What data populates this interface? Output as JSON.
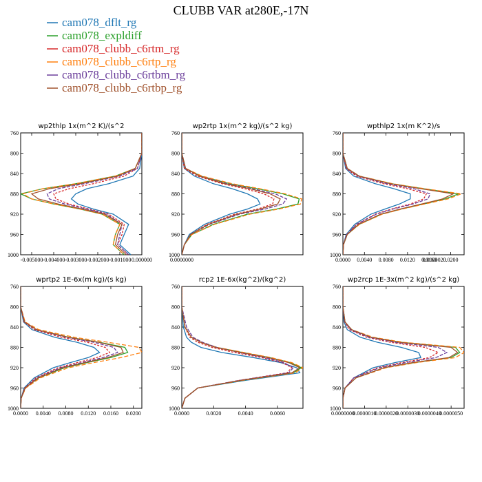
{
  "title": "CLUBB VAR at280E,-17N",
  "legend": [
    {
      "label": "cam078_dflt_rg",
      "color": "#1f77b4"
    },
    {
      "label": "cam078_expldiff",
      "color": "#2ca02c"
    },
    {
      "label": "cam078_clubb_c6rtm_rg",
      "color": "#d62728"
    },
    {
      "label": "cam078_clubb_c6rtp_rg",
      "color": "#ff7f0e"
    },
    {
      "label": "cam078_clubb_c6rtbm_rg",
      "color": "#6a3d9a"
    },
    {
      "label": "cam078_clubb_c6rtbp_rg",
      "color": "#a0522d"
    }
  ],
  "chart_data": [
    {
      "type": "line",
      "title": "wp2thlp 1x(m^2 K)/(s^2",
      "xlim": [
        -0.0055,
        0.0
      ],
      "xticks": [
        "-0.005000",
        "-0.004000",
        "-0.003000",
        "-0.002000",
        "-0.001000",
        "0.000000"
      ],
      "ylim": [
        760,
        1000
      ],
      "yticks": [
        "760",
        "800",
        "840",
        "880",
        "920",
        "960",
        "1000"
      ],
      "y": [
        760,
        800,
        830,
        845,
        860,
        870,
        880,
        890,
        900,
        910,
        920,
        940,
        960,
        980,
        1000
      ],
      "series": [
        {
          "name": "cam078_dflt_rg",
          "values": [
            0,
            0,
            -0.0001,
            -0.0004,
            -0.0015,
            -0.0025,
            -0.003,
            -0.0032,
            -0.0029,
            -0.0022,
            -0.0013,
            -0.0006,
            -0.0008,
            -0.001,
            -0.0005
          ]
        },
        {
          "name": "cam078_expldiff",
          "values": [
            0,
            0,
            -0.0003,
            -0.0012,
            -0.003,
            -0.0045,
            -0.0055,
            -0.005,
            -0.004,
            -0.0028,
            -0.0018,
            -0.001,
            -0.0012,
            -0.0013,
            -0.0008
          ]
        },
        {
          "name": "cam078_clubb_c6rtm_rg",
          "values": [
            0,
            0,
            -0.0002,
            -0.0008,
            -0.0022,
            -0.0033,
            -0.004,
            -0.0039,
            -0.0033,
            -0.0024,
            -0.0015,
            -0.0008,
            -0.0009,
            -0.0011,
            -0.0006
          ]
        },
        {
          "name": "cam078_clubb_c6rtp_rg",
          "values": [
            0,
            0,
            -0.0003,
            -0.0012,
            -0.003,
            -0.0045,
            -0.0054,
            -0.005,
            -0.004,
            -0.0028,
            -0.0018,
            -0.001,
            -0.0012,
            -0.0013,
            -0.0008
          ]
        },
        {
          "name": "cam078_clubb_c6rtbm_rg",
          "values": [
            0,
            0,
            -0.0002,
            -0.001,
            -0.0026,
            -0.0038,
            -0.0043,
            -0.0042,
            -0.0035,
            -0.0025,
            -0.0016,
            -0.0009,
            -0.001,
            -0.0011,
            -0.0006
          ]
        },
        {
          "name": "cam078_clubb_c6rtbp_rg",
          "values": [
            0,
            0,
            -0.0003,
            -0.0011,
            -0.0028,
            -0.0042,
            -0.005,
            -0.0047,
            -0.0038,
            -0.0027,
            -0.0017,
            -0.0009,
            -0.0011,
            -0.0012,
            -0.0007
          ]
        }
      ]
    },
    {
      "type": "line",
      "title": "wp2rtp 1x(m^2 kg)/(s^2 kg)",
      "xlim": [
        0.0,
        9.6e-07
      ],
      "xticks": [
        "0.0000000",
        "0.0000020",
        "0.0000040",
        "0.0000060",
        "0.0000080"
      ],
      "ylim": [
        760,
        1000
      ],
      "yticks": [
        "760",
        "800",
        "840",
        "880",
        "920",
        "960",
        "1000"
      ],
      "y": [
        760,
        800,
        830,
        845,
        860,
        870,
        880,
        890,
        900,
        910,
        920,
        940,
        960,
        980,
        1000
      ],
      "series": [
        {
          "name": "cam078_dflt_rg",
          "values": [
            0,
            0,
            2e-08,
            1e-07,
            2.5e-07,
            4e-07,
            5.2e-07,
            6e-07,
            6.2e-07,
            5.2e-07,
            3.8e-07,
            1.8e-07,
            6e-08,
            2e-08,
            0
          ]
        },
        {
          "name": "cam078_expldiff",
          "values": [
            0,
            0,
            3e-08,
            1.5e-07,
            3.8e-07,
            6e-07,
            8e-07,
            9.3e-07,
            9.2e-07,
            7.5e-07,
            5.2e-07,
            2.5e-07,
            8e-08,
            2e-08,
            0
          ]
        },
        {
          "name": "cam078_clubb_c6rtm_rg",
          "values": [
            0,
            0,
            2e-08,
            1.2e-07,
            3.2e-07,
            5e-07,
            6.5e-07,
            7.3e-07,
            7.2e-07,
            6e-07,
            4.2e-07,
            2e-07,
            7e-08,
            2e-08,
            0
          ]
        },
        {
          "name": "cam078_clubb_c6rtp_rg",
          "values": [
            0,
            0,
            3e-08,
            1.6e-07,
            4e-07,
            6.2e-07,
            8.2e-07,
            9.5e-07,
            9.4e-07,
            7.7e-07,
            5.4e-07,
            2.6e-07,
            8e-08,
            2e-08,
            0
          ]
        },
        {
          "name": "cam078_clubb_c6rtbm_rg",
          "values": [
            0,
            0,
            3e-08,
            1.4e-07,
            3.6e-07,
            5.6e-07,
            7.4e-07,
            8.3e-07,
            8e-07,
            6.6e-07,
            4.6e-07,
            2.2e-07,
            7e-08,
            2e-08,
            0
          ]
        },
        {
          "name": "cam078_clubb_c6rtbp_rg",
          "values": [
            0,
            0,
            3e-08,
            1.4e-07,
            3.4e-07,
            5.4e-07,
            7e-07,
            7.8e-07,
            7.6e-07,
            6.2e-07,
            4.4e-07,
            2.1e-07,
            7e-08,
            2e-08,
            0
          ]
        }
      ]
    },
    {
      "type": "line",
      "title": "wpthlp2 1x(m K^2)/s",
      "xlim": [
        0.0,
        0.0225
      ],
      "xticks": [
        "0.0000",
        "0.0040",
        "0.0080",
        "0.0120",
        "0.0160",
        "0.0200"
      ],
      "ylim": [
        760,
        1000
      ],
      "yticks": [
        "760",
        "800",
        "840",
        "880",
        "920",
        "960",
        "1000"
      ],
      "y": [
        760,
        800,
        830,
        845,
        860,
        870,
        880,
        890,
        900,
        910,
        920,
        940,
        960,
        980,
        1000
      ],
      "series": [
        {
          "name": "cam078_dflt_rg",
          "values": [
            0,
            0,
            0.0005,
            0.002,
            0.006,
            0.0095,
            0.0125,
            0.0125,
            0.0105,
            0.0078,
            0.0052,
            0.0022,
            0.0006,
            0.0001,
            0
          ]
        },
        {
          "name": "cam078_expldiff",
          "values": [
            0,
            0,
            0.0008,
            0.003,
            0.009,
            0.015,
            0.0215,
            0.019,
            0.015,
            0.0108,
            0.0072,
            0.003,
            0.0008,
            0.0001,
            0
          ]
        },
        {
          "name": "cam078_clubb_c6rtm_rg",
          "values": [
            0,
            0,
            0.0006,
            0.0025,
            0.0075,
            0.012,
            0.0155,
            0.015,
            0.0125,
            0.009,
            0.006,
            0.0025,
            0.0007,
            0.0001,
            0
          ]
        },
        {
          "name": "cam078_clubb_c6rtp_rg",
          "values": [
            0,
            0,
            0.0008,
            0.0031,
            0.0092,
            0.0152,
            0.022,
            0.0195,
            0.0152,
            0.011,
            0.0073,
            0.0031,
            0.0008,
            0.0001,
            0
          ]
        },
        {
          "name": "cam078_clubb_c6rtbm_rg",
          "values": [
            0,
            0,
            0.0007,
            0.0028,
            0.0082,
            0.0132,
            0.0162,
            0.0158,
            0.013,
            0.0093,
            0.0062,
            0.0026,
            0.0007,
            0.0001,
            0
          ]
        },
        {
          "name": "cam078_clubb_c6rtbp_rg",
          "values": [
            0,
            0,
            0.0008,
            0.003,
            0.0088,
            0.0145,
            0.0205,
            0.0185,
            0.0146,
            0.0106,
            0.007,
            0.0029,
            0.0008,
            0.0001,
            0
          ]
        }
      ]
    },
    {
      "type": "line",
      "title": "wprtp2 1E-6x(m kg)/(s kg)",
      "xlim": [
        0.0,
        0.0215
      ],
      "xticks": [
        "0.0000",
        "0.0040",
        "0.0080",
        "0.0120",
        "0.0160",
        "0.0200"
      ],
      "ylim": [
        760,
        1000
      ],
      "yticks": [
        "760",
        "800",
        "840",
        "880",
        "920",
        "960",
        "1000"
      ],
      "y": [
        760,
        800,
        830,
        845,
        860,
        870,
        880,
        890,
        900,
        910,
        920,
        940,
        960,
        980,
        1000
      ],
      "series": [
        {
          "name": "cam078_dflt_rg",
          "values": [
            0,
            0,
            0.0005,
            0.002,
            0.006,
            0.01,
            0.013,
            0.014,
            0.012,
            0.0088,
            0.0058,
            0.0024,
            0.0006,
            0.0001,
            0
          ]
        },
        {
          "name": "cam078_expldiff",
          "values": [
            0,
            0,
            0.0007,
            0.0028,
            0.0085,
            0.014,
            0.0185,
            0.019,
            0.016,
            0.0118,
            0.0078,
            0.0032,
            0.0008,
            0.0001,
            0
          ]
        },
        {
          "name": "cam078_clubb_c6rtm_rg",
          "values": [
            0,
            0,
            0.0006,
            0.0024,
            0.0072,
            0.0118,
            0.015,
            0.0158,
            0.0135,
            0.01,
            0.0066,
            0.0027,
            0.0007,
            0.0001,
            0
          ]
        },
        {
          "name": "cam078_clubb_c6rtp_rg",
          "values": [
            0,
            0,
            0.0008,
            0.0032,
            0.0095,
            0.0155,
            0.021,
            0.0215,
            0.0178,
            0.013,
            0.0085,
            0.0035,
            0.0009,
            0.0001,
            0
          ]
        },
        {
          "name": "cam078_clubb_c6rtbm_rg",
          "values": [
            0,
            0,
            0.0007,
            0.0027,
            0.008,
            0.013,
            0.0165,
            0.0172,
            0.0146,
            0.0108,
            0.0071,
            0.0029,
            0.0008,
            0.0001,
            0
          ]
        },
        {
          "name": "cam078_clubb_c6rtbp_rg",
          "values": [
            0,
            0,
            0.0007,
            0.0028,
            0.0084,
            0.0138,
            0.0178,
            0.0182,
            0.0154,
            0.0114,
            0.0075,
            0.0031,
            0.0008,
            0.0001,
            0
          ]
        }
      ]
    },
    {
      "type": "line",
      "title": "rcp2 1E-6x(kg^2)/(kg^2)",
      "xlim": [
        0.0,
        0.0076
      ],
      "xticks": [
        "0.0000",
        "0.0020",
        "0.0040",
        "0.0060"
      ],
      "ylim": [
        760,
        1000
      ],
      "yticks": [
        "760",
        "800",
        "840",
        "880",
        "920",
        "960",
        "1000"
      ],
      "y": [
        760,
        800,
        840,
        860,
        870,
        880,
        890,
        900,
        910,
        920,
        930,
        945,
        960,
        980,
        1000
      ],
      "series": [
        {
          "name": "cam078_dflt_rg",
          "values": [
            0,
            0,
            0.0001,
            0.0003,
            0.0006,
            0.0012,
            0.0025,
            0.0045,
            0.0062,
            0.0072,
            0.0074,
            0.004,
            0.001,
            0.0002,
            0
          ]
        },
        {
          "name": "cam078_expldiff",
          "values": [
            0,
            0,
            0.0002,
            0.0006,
            0.0012,
            0.0022,
            0.0038,
            0.0055,
            0.0068,
            0.0075,
            0.007,
            0.0038,
            0.001,
            0.0002,
            0
          ]
        },
        {
          "name": "cam078_clubb_c6rtm_rg",
          "values": [
            0,
            0,
            0.0002,
            0.0005,
            0.001,
            0.0019,
            0.0033,
            0.005,
            0.0063,
            0.0069,
            0.0066,
            0.0036,
            0.001,
            0.0002,
            0
          ]
        },
        {
          "name": "cam078_clubb_c6rtp_rg",
          "values": [
            0,
            0,
            0.0002,
            0.0006,
            0.0012,
            0.0022,
            0.0039,
            0.0056,
            0.0069,
            0.0076,
            0.0071,
            0.0038,
            0.001,
            0.0002,
            0
          ]
        },
        {
          "name": "cam078_clubb_c6rtbm_rg",
          "values": [
            0,
            0,
            0.0003,
            0.0007,
            0.0013,
            0.0022,
            0.0036,
            0.0052,
            0.0064,
            0.007,
            0.0067,
            0.0036,
            0.001,
            0.0002,
            0
          ]
        },
        {
          "name": "cam078_clubb_c6rtbp_rg",
          "values": [
            0,
            0,
            0.0002,
            0.0006,
            0.0012,
            0.0021,
            0.0037,
            0.0054,
            0.0067,
            0.0074,
            0.0069,
            0.0037,
            0.001,
            0.0002,
            0
          ]
        }
      ]
    },
    {
      "type": "line",
      "title": "wp2rcp 1E-3x(m^2 kg)/(s^2 kg)",
      "xlim": [
        0.0,
        5.6e-06
      ],
      "xticks": [
        "0.0000000",
        "0.0000010",
        "0.0000020",
        "0.0000030",
        "0.0000040",
        "0.0000050"
      ],
      "ylim": [
        760,
        1000
      ],
      "yticks": [
        "760",
        "800",
        "840",
        "880",
        "920",
        "960",
        "1000"
      ],
      "y": [
        760,
        800,
        830,
        845,
        860,
        870,
        880,
        890,
        900,
        910,
        920,
        940,
        960,
        980,
        1000
      ],
      "series": [
        {
          "name": "cam078_dflt_rg",
          "values": [
            0,
            0,
            5e-08,
            2e-07,
            8e-07,
            1.6e-06,
            2.7e-06,
            3.5e-06,
            3.6e-06,
            2.4e-06,
            1.4e-06,
            5e-07,
            1e-07,
            0,
            0
          ]
        },
        {
          "name": "cam078_expldiff",
          "values": [
            0,
            0,
            1e-07,
            4e-07,
            1.3e-06,
            2.7e-06,
            5.2e-06,
            5.4e-06,
            5e-06,
            3.3e-06,
            1.9e-06,
            6e-07,
            1e-07,
            0,
            0
          ]
        },
        {
          "name": "cam078_clubb_c6rtm_rg",
          "values": [
            0,
            0,
            8e-08,
            3e-07,
            1.1e-06,
            2.2e-06,
            3.8e-06,
            4.4e-06,
            4e-06,
            2.7e-06,
            1.6e-06,
            5e-07,
            1e-07,
            0,
            0
          ]
        },
        {
          "name": "cam078_clubb_c6rtp_rg",
          "values": [
            0,
            0,
            1e-07,
            4e-07,
            1.4e-06,
            2.8e-06,
            5.4e-06,
            5.6e-06,
            5.2e-06,
            3.4e-06,
            2e-06,
            6e-07,
            1e-07,
            0,
            0
          ]
        },
        {
          "name": "cam078_clubb_c6rtbm_rg",
          "values": [
            0,
            0,
            9e-08,
            3.5e-07,
            1.2e-06,
            2.4e-06,
            4.4e-06,
            4.8e-06,
            4.3e-06,
            2.9e-06,
            1.7e-06,
            5e-07,
            1e-07,
            0,
            0
          ]
        },
        {
          "name": "cam078_clubb_c6rtbp_rg",
          "values": [
            0,
            0,
            1e-07,
            4e-07,
            1.3e-06,
            2.6e-06,
            5e-06,
            5.3e-06,
            4.9e-06,
            3.2e-06,
            1.9e-06,
            6e-07,
            1e-07,
            0,
            0
          ]
        }
      ]
    }
  ]
}
